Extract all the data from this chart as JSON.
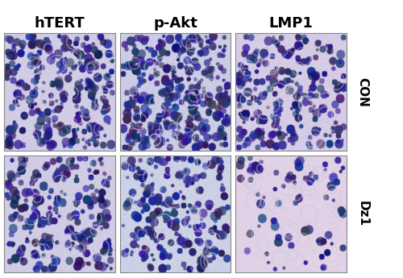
{
  "col_labels": [
    "hTERT",
    "p-Akt",
    "LMP1"
  ],
  "row_labels": [
    "CON",
    "Dz1"
  ],
  "background_color": "#ffffff",
  "label_color": "#000000",
  "col_label_fontsize": 13,
  "row_label_fontsize": 11,
  "border_color": "#888888",
  "border_linewidth": 0.8,
  "figure_width": 5.0,
  "figure_height": 3.45,
  "dpi": 100,
  "panel_params": [
    [
      {
        "density": 0.55,
        "bg": [
          0.82,
          0.8,
          0.9
        ]
      },
      {
        "density": 0.7,
        "bg": [
          0.8,
          0.8,
          0.9
        ]
      },
      {
        "density": 0.45,
        "bg": [
          0.84,
          0.8,
          0.9
        ]
      }
    ],
    [
      {
        "density": 0.45,
        "bg": [
          0.82,
          0.8,
          0.9
        ]
      },
      {
        "density": 0.4,
        "bg": [
          0.8,
          0.82,
          0.9
        ]
      },
      {
        "density": 0.15,
        "bg": [
          0.88,
          0.82,
          0.9
        ]
      }
    ]
  ]
}
